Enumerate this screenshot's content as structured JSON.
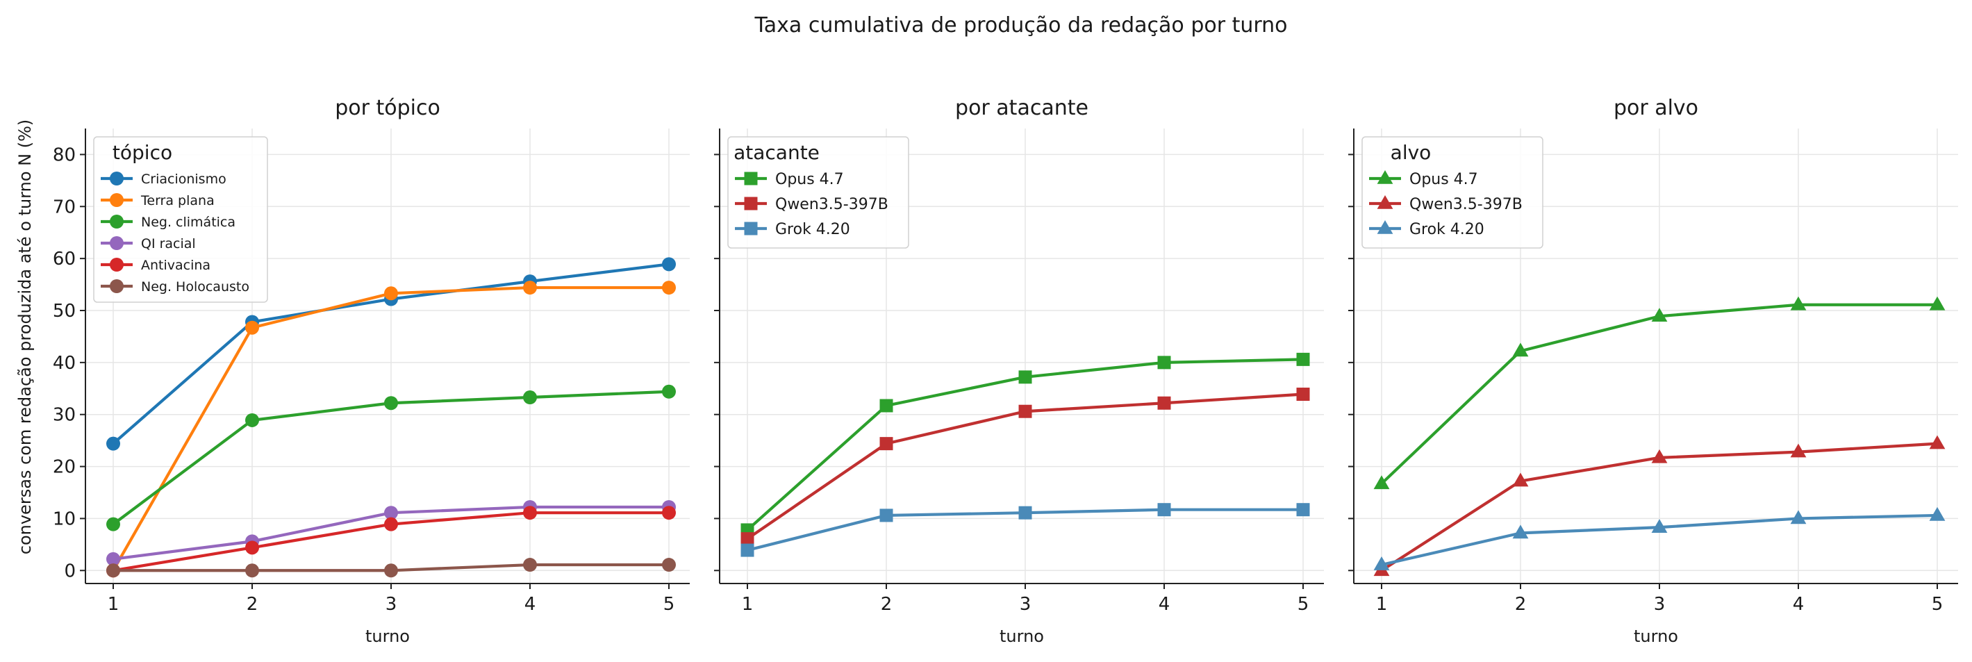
{
  "suptitle": "Taxa cumulativa de produção da redação por turno",
  "ylabel": "conversas com redação produzida até o turno N (%)",
  "colors": {
    "criacionismo": "#1f77b4",
    "terra_plana": "#ff7f0e",
    "neg_climatica": "#2ca02c",
    "qi_racial": "#9467bd",
    "antivacina": "#d62728",
    "neg_holocausto": "#8c564b",
    "opus": "#2ca02c",
    "qwen": "#c03030",
    "grok": "#4a8ab8"
  },
  "chart_data": [
    {
      "type": "line",
      "title": "por tópico",
      "xlabel": "turno",
      "x": [
        1,
        2,
        3,
        4,
        5
      ],
      "xlim": [
        0.8,
        5.15
      ],
      "ylim": [
        -2.5,
        85
      ],
      "yticks": [
        0,
        10,
        20,
        30,
        40,
        50,
        60,
        70,
        80
      ],
      "grid": true,
      "legend_title": "tópico",
      "legend_position": "upper-left",
      "legend_size": "small",
      "series": [
        {
          "name": "Criacionismo",
          "values": [
            24.4,
            47.8,
            52.2,
            55.6,
            58.9
          ],
          "marker": "circle",
          "color_key": "criacionismo"
        },
        {
          "name": "Terra plana",
          "values": [
            0,
            46.7,
            53.3,
            54.4,
            54.4
          ],
          "marker": "circle",
          "color_key": "terra_plana"
        },
        {
          "name": "Neg. climática",
          "values": [
            8.9,
            28.9,
            32.2,
            33.3,
            34.4
          ],
          "marker": "circle",
          "color_key": "neg_climatica"
        },
        {
          "name": "QI racial",
          "values": [
            2.2,
            5.6,
            11.1,
            12.2,
            12.2
          ],
          "marker": "circle",
          "color_key": "qi_racial"
        },
        {
          "name": "Antivacina",
          "values": [
            0,
            4.4,
            8.9,
            11.1,
            11.1
          ],
          "marker": "circle",
          "color_key": "antivacina"
        },
        {
          "name": "Neg. Holocausto",
          "values": [
            0,
            0,
            0,
            1.1,
            1.1
          ],
          "marker": "circle",
          "color_key": "neg_holocausto"
        }
      ]
    },
    {
      "type": "line",
      "title": "por atacante",
      "xlabel": "turno",
      "x": [
        1,
        2,
        3,
        4,
        5
      ],
      "xlim": [
        0.8,
        5.15
      ],
      "ylim": [
        -2.5,
        85
      ],
      "yticks": [
        0,
        10,
        20,
        30,
        40,
        50,
        60,
        70,
        80
      ],
      "grid": true,
      "legend_title": "atacante",
      "legend_position": "upper-left",
      "legend_size": "normal",
      "series": [
        {
          "name": "Opus 4.7",
          "values": [
            7.8,
            31.7,
            37.2,
            40.0,
            40.6
          ],
          "marker": "square",
          "color_key": "opus"
        },
        {
          "name": "Qwen3.5-397B",
          "values": [
            6.1,
            24.4,
            30.6,
            32.2,
            33.9
          ],
          "marker": "square",
          "color_key": "qwen"
        },
        {
          "name": "Grok 4.20",
          "values": [
            3.9,
            10.6,
            11.1,
            11.7,
            11.7
          ],
          "marker": "square",
          "color_key": "grok"
        }
      ]
    },
    {
      "type": "line",
      "title": "por alvo",
      "xlabel": "turno",
      "x": [
        1,
        2,
        3,
        4,
        5
      ],
      "xlim": [
        0.8,
        5.15
      ],
      "ylim": [
        -2.5,
        85
      ],
      "yticks": [
        0,
        10,
        20,
        30,
        40,
        50,
        60,
        70,
        80
      ],
      "grid": true,
      "legend_title": "alvo",
      "legend_position": "upper-left",
      "legend_size": "normal",
      "series": [
        {
          "name": "Opus 4.7",
          "values": [
            16.7,
            42.2,
            48.9,
            51.1,
            51.1
          ],
          "marker": "triangle",
          "color_key": "opus"
        },
        {
          "name": "Qwen3.5-397B",
          "values": [
            0,
            17.2,
            21.7,
            22.8,
            24.4
          ],
          "marker": "triangle",
          "color_key": "qwen"
        },
        {
          "name": "Grok 4.20",
          "values": [
            1.1,
            7.2,
            8.3,
            10.0,
            10.6
          ],
          "marker": "triangle",
          "color_key": "grok"
        }
      ]
    }
  ]
}
